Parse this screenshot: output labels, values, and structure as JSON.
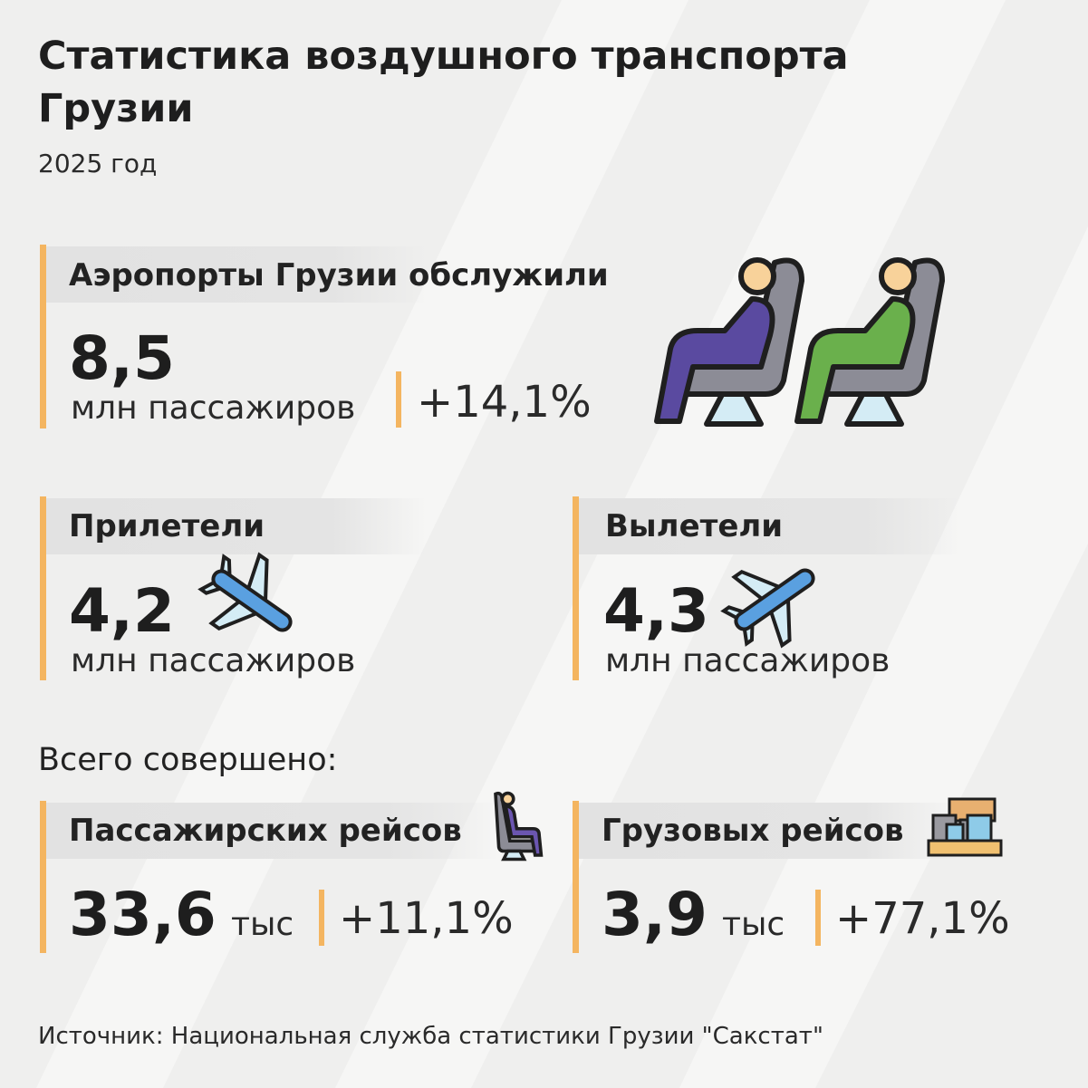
{
  "header": {
    "title_lines": [
      "Статистика воздушного транспорта",
      "Грузии"
    ],
    "subtitle": "2025 год"
  },
  "total_passengers": {
    "label": "Аэропорты Грузии обслужили",
    "value": "8,5",
    "unit": "млн пассажиров",
    "change": "+14,1%"
  },
  "arrivals": {
    "label": "Прилетели",
    "value": "4,2",
    "unit": "млн пассажиров"
  },
  "departures": {
    "label": "Вылетели",
    "value": "4,3",
    "unit": "млн пассажиров"
  },
  "flights_heading": "Всего совершено:",
  "passenger_flights": {
    "label": "Пассажирских рейсов",
    "value": "33,6",
    "unit": "тыс",
    "change": "+11,1%"
  },
  "cargo_flights": {
    "label": "Грузовых рейсов",
    "value": "3,9",
    "unit": "тыс",
    "change": "+77,1%"
  },
  "source": "Источник: Национальная служба статистики Грузии \"Сакстат\""
}
